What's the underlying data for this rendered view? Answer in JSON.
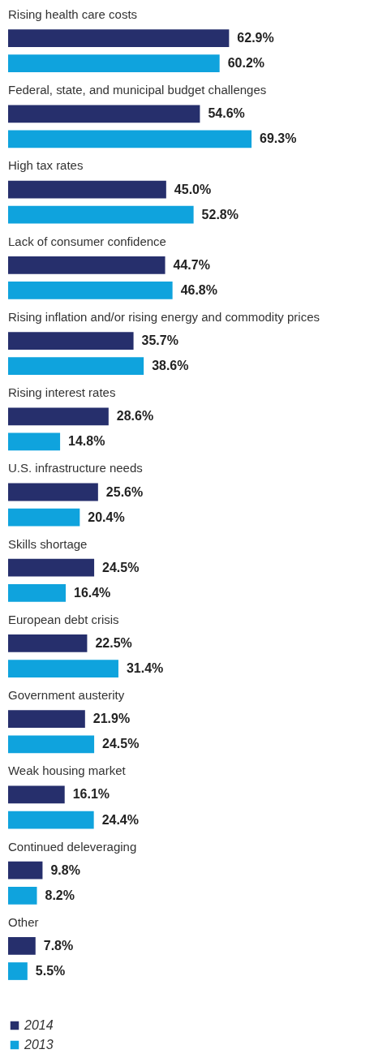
{
  "chart_data": {
    "type": "bar",
    "orientation": "horizontal",
    "legend": "bottom left",
    "categories": [
      "Rising health care costs",
      "Federal, state, and municipal budget challenges",
      "High tax rates",
      "Lack of consumer confidence",
      "Rising inflation and/or rising energy and commodity prices",
      "Rising interest rates",
      "U.S. infrastructure needs",
      "Skills shortage",
      "European debt crisis",
      "Government austerity",
      "Weak housing market",
      "Continued deleveraging",
      "Other"
    ],
    "series": [
      {
        "name": "2014",
        "color": "#262f6c",
        "values": [
          62.9,
          54.6,
          45.0,
          44.7,
          35.7,
          28.6,
          25.6,
          24.5,
          22.5,
          21.9,
          16.1,
          9.8,
          7.8
        ],
        "value_labels": [
          "62.9%",
          "54.6%",
          "45.0%",
          "44.7%",
          "35.7%",
          "28.6%",
          "25.6%",
          "24.5%",
          "22.5%",
          "21.9%",
          "16.1%",
          "9.8%",
          "7.8%"
        ]
      },
      {
        "name": "2013",
        "color": "#0fa3dd",
        "values": [
          60.2,
          69.3,
          52.8,
          46.8,
          38.6,
          14.8,
          20.4,
          16.4,
          31.4,
          24.5,
          24.4,
          8.2,
          5.5
        ],
        "value_labels": [
          "60.2%",
          "69.3%",
          "52.8%",
          "46.8%",
          "38.6%",
          "14.8%",
          "20.4%",
          "16.4%",
          "31.4%",
          "24.5%",
          "24.4%",
          "8.2%",
          "5.5%"
        ]
      }
    ]
  }
}
